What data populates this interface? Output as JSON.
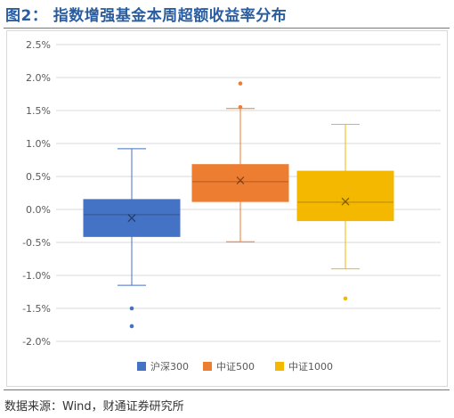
{
  "figure_title": "图2： 指数增强基金本周超额收益率分布",
  "source_note": "数据来源：Wind，财通证券研究所",
  "colors": {
    "title": "#2a5d9f",
    "rule": "#4a7fc1",
    "grid": "#d9d9d9",
    "axis_text": "#595959"
  },
  "chart_data": {
    "type": "box",
    "title": "",
    "xlabel": "",
    "ylabel": "",
    "ylim": [
      -2.0,
      2.5
    ],
    "yticks": [
      "2.5%",
      "2.0%",
      "1.5%",
      "1.0%",
      "0.5%",
      "0.0%",
      "-0.5%",
      "-1.0%",
      "-1.5%",
      "-2.0%"
    ],
    "ytick_values": [
      2.5,
      2.0,
      1.5,
      1.0,
      0.5,
      0.0,
      -0.5,
      -1.0,
      -1.5,
      -2.0
    ],
    "grid": true,
    "legend_position": "bottom",
    "series": [
      {
        "name": "沪深300",
        "color": "#4472c4",
        "whisker_low": -1.15,
        "q1": -0.41,
        "median": -0.08,
        "q3": 0.15,
        "whisker_high": 0.92,
        "mean": -0.13,
        "outliers": [
          -1.5,
          -1.77
        ]
      },
      {
        "name": "中证500",
        "color": "#ed7d31",
        "whisker_low": -0.49,
        "q1": 0.12,
        "median": 0.42,
        "q3": 0.68,
        "whisker_high": 1.53,
        "mean": 0.44,
        "outliers": [
          1.91,
          1.55
        ]
      },
      {
        "name": "中证1000",
        "color": "#f5b800",
        "whisker_low": -0.9,
        "q1": -0.17,
        "median": 0.11,
        "q3": 0.58,
        "whisker_high": 1.29,
        "mean": 0.12,
        "outliers": [
          -1.35
        ]
      }
    ]
  }
}
